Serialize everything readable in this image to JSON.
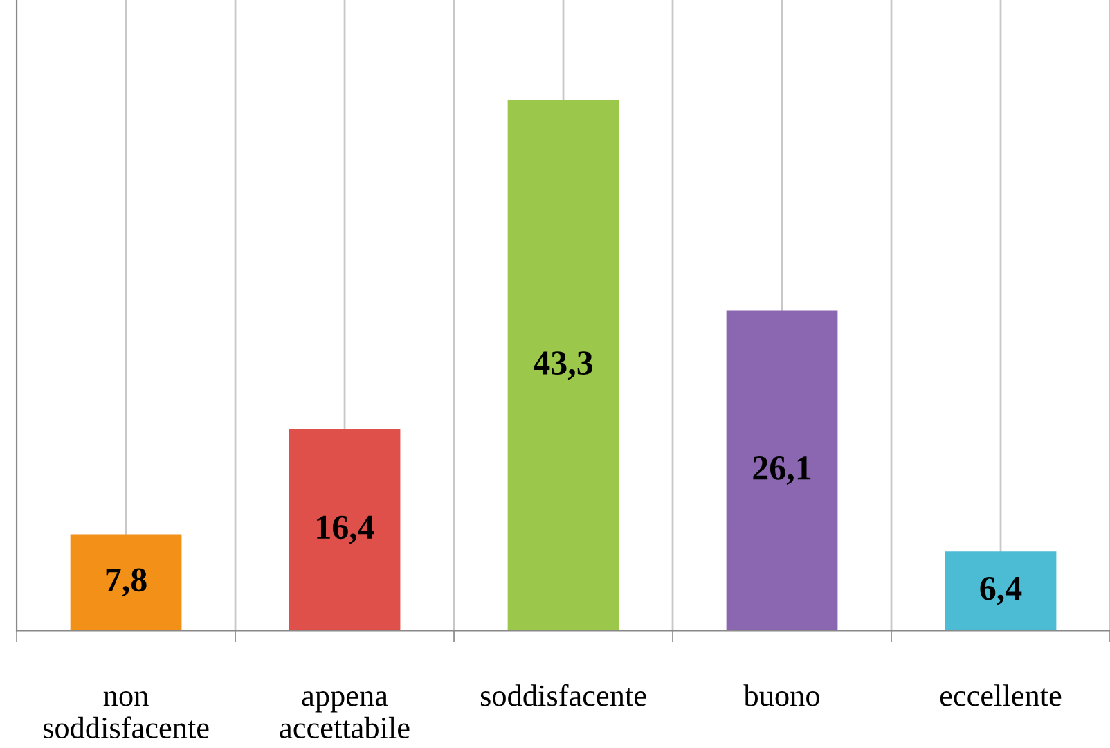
{
  "chart_data": {
    "type": "bar",
    "categories": [
      "non\nsoddisfacente",
      "appena\naccettabile",
      "soddisfacente",
      "buono",
      "eccellente"
    ],
    "values": [
      7.8,
      16.4,
      43.3,
      26.1,
      6.4
    ],
    "value_labels": [
      "7,8",
      "16,4",
      "43,3",
      "26,1",
      "6,4"
    ],
    "colors": [
      "#f39018",
      "#e0504b",
      "#9bc84a",
      "#8a67b0",
      "#4cbcd4"
    ],
    "ylim": [
      0,
      51.6
    ],
    "tick_labels": "x",
    "grid": "x",
    "legend": false
  }
}
